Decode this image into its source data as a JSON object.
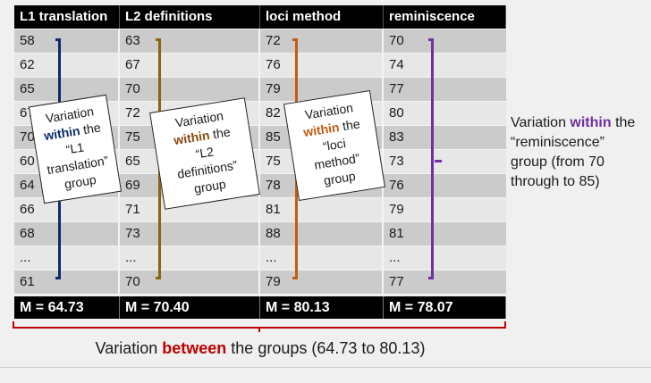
{
  "table": {
    "headers": [
      "L1 translation",
      "L2 definitions",
      "loci method",
      "reminiscence"
    ],
    "rows": [
      [
        "58",
        "63",
        "72",
        "70"
      ],
      [
        "62",
        "67",
        "76",
        "74"
      ],
      [
        "65",
        "70",
        "79",
        "77"
      ],
      [
        "67",
        "72",
        "82",
        "80"
      ],
      [
        "70",
        "75",
        "85",
        "83"
      ],
      [
        "60",
        "65",
        "75",
        "73"
      ],
      [
        "64",
        "69",
        "78",
        "76"
      ],
      [
        "66",
        "71",
        "81",
        "79"
      ],
      [
        "68",
        "73",
        "88",
        "81"
      ],
      [
        "...",
        "...",
        "...",
        "..."
      ],
      [
        "61",
        "70",
        "79",
        "77"
      ]
    ],
    "means": [
      "M = 64.73",
      "M = 70.40",
      "M = 80.13",
      "M = 78.07"
    ]
  },
  "colors": {
    "l1": "#0d2a6b",
    "l2": "#8a6410",
    "loci": "#c55a11",
    "reminiscence": "#7030a0",
    "between": "#c00000"
  },
  "notes": {
    "l1": {
      "line1": "Variation",
      "emph": "within",
      "line2b": " the",
      "line3": "“L1",
      "line4": "translation”",
      "line5": "group"
    },
    "l2": {
      "line1": "Variation",
      "emph": "within",
      "line2b": " the",
      "line3": "“L2",
      "line4": "definitions”",
      "line5": "group"
    },
    "loci": {
      "line1": "Variation",
      "emph": "within",
      "line2b": " the",
      "line3": "“loci",
      "line4": "method”",
      "line5": "group"
    }
  },
  "side_note": {
    "prefix": "Variation ",
    "emph": "within",
    "suffix": " the",
    "line2": "“reminiscence”",
    "line3": "group (from 70",
    "line4": "through to 85)"
  },
  "between_note": {
    "prefix": "Variation ",
    "emph": "between",
    "suffix": " the groups (64.73 to 80.13)"
  }
}
